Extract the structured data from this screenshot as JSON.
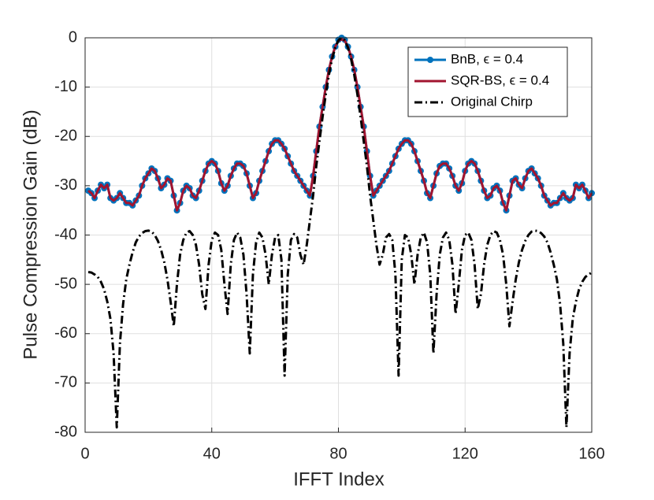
{
  "chart_data": {
    "type": "line",
    "xlabel": "IFFT Index",
    "ylabel": "Pulse Compression Gain (dB)",
    "xlim": [
      0,
      160
    ],
    "xticks": [
      0,
      40,
      80,
      120,
      160
    ],
    "ylim": [
      -80,
      0
    ],
    "yticks": [
      0,
      -10,
      -20,
      -30,
      -40,
      -50,
      -60,
      -70,
      -80
    ],
    "grid": true,
    "legend": "northeast",
    "x": [
      1,
      2,
      3,
      4,
      5,
      6,
      7,
      8,
      9,
      10,
      11,
      12,
      13,
      14,
      15,
      16,
      17,
      18,
      19,
      20,
      21,
      22,
      23,
      24,
      25,
      26,
      27,
      28,
      29,
      30,
      31,
      32,
      33,
      34,
      35,
      36,
      37,
      38,
      39,
      40,
      41,
      42,
      43,
      44,
      45,
      46,
      47,
      48,
      49,
      50,
      51,
      52,
      53,
      54,
      55,
      56,
      57,
      58,
      59,
      60,
      61,
      62,
      63,
      64,
      65,
      66,
      67,
      68,
      69,
      70,
      71,
      72,
      73,
      74,
      75,
      76,
      77,
      78,
      79,
      80,
      81,
      82,
      83,
      84,
      85,
      86,
      87,
      88,
      89,
      90,
      91,
      92,
      93,
      94,
      95,
      96,
      97,
      98,
      99,
      100,
      101,
      102,
      103,
      104,
      105,
      106,
      107,
      108,
      109,
      110,
      111,
      112,
      113,
      114,
      115,
      116,
      117,
      118,
      119,
      120,
      121,
      122,
      123,
      124,
      125,
      126,
      127,
      128,
      129,
      130,
      131,
      132,
      133,
      134,
      135,
      136,
      137,
      138,
      139,
      140,
      141,
      142,
      143,
      144,
      145,
      146,
      147,
      148,
      149,
      150,
      151,
      152,
      153,
      154,
      155,
      156,
      157,
      158,
      159,
      160
    ],
    "series": [
      {
        "name": "BnB, ϵ = 0.4",
        "color": "#0072bd",
        "marker": "o",
        "dash": "solid",
        "values": [
          -31,
          -31.5,
          -32.5,
          -31,
          -29.8,
          -30.5,
          -29.8,
          -32.5,
          -33,
          -32.5,
          -31.5,
          -32.5,
          -33.5,
          -33.5,
          -34,
          -33,
          -32,
          -30,
          -28.5,
          -27.5,
          -26.5,
          -27,
          -28.5,
          -30.5,
          -29.8,
          -28.5,
          -29,
          -32,
          -35,
          -33.5,
          -31,
          -30,
          -30.5,
          -32,
          -32.5,
          -31,
          -29,
          -27,
          -25.5,
          -25,
          -25.5,
          -27,
          -29.5,
          -31,
          -30,
          -28,
          -26.5,
          -25.5,
          -25.5,
          -26,
          -27.5,
          -30,
          -32.5,
          -31.5,
          -29,
          -27,
          -25,
          -23,
          -21.5,
          -20.8,
          -20.8,
          -21.5,
          -22.5,
          -24,
          -25.5,
          -27,
          -28,
          -29,
          -30,
          -31,
          -32,
          -28,
          -23,
          -18,
          -14,
          -10,
          -6.5,
          -3.8,
          -1.8,
          -0.4,
          0,
          -0.4,
          -1.8,
          -3.8,
          -6.5,
          -10,
          -14,
          -18,
          -23,
          -28,
          -32,
          -31,
          -30,
          -29,
          -28,
          -27,
          -25.5,
          -24,
          -22.5,
          -21.5,
          -20.8,
          -20.8,
          -21.5,
          -23,
          -25,
          -27,
          -29,
          -31.5,
          -32.5,
          -30,
          -27.5,
          -26,
          -25.5,
          -25.5,
          -26.5,
          -28,
          -30,
          -31,
          -29.5,
          -27,
          -25.5,
          -25,
          -25.5,
          -27,
          -29,
          -31,
          -32.5,
          -32,
          -30.5,
          -30,
          -31,
          -33.5,
          -35,
          -32,
          -29,
          -28.5,
          -29.8,
          -30.5,
          -28.5,
          -27,
          -26.5,
          -27.5,
          -28.5,
          -30,
          -32,
          -33,
          -34,
          -33.5,
          -33.5,
          -32.5,
          -31.5,
          -32.5,
          -33,
          -32.5,
          -29.8,
          -30.5,
          -29.8,
          -31,
          -32.5,
          -31.5
        ]
      },
      {
        "name": "SQR-BS, ϵ = 0.4",
        "color": "#a2142f",
        "marker": "none",
        "dash": "solid",
        "values": [
          -31,
          -31.5,
          -32.5,
          -31,
          -29.8,
          -30.5,
          -29.8,
          -32.5,
          -33,
          -32.5,
          -31.5,
          -32.5,
          -33.5,
          -33.5,
          -34,
          -33,
          -32,
          -30,
          -28.5,
          -27.5,
          -26.5,
          -27,
          -28.5,
          -30.5,
          -29.8,
          -28.5,
          -29,
          -32,
          -35,
          -33.5,
          -31,
          -30,
          -30.5,
          -32,
          -32.5,
          -31,
          -29,
          -27,
          -25.5,
          -25,
          -25.5,
          -27,
          -29.5,
          -31,
          -30,
          -28,
          -26.5,
          -25.5,
          -25.5,
          -26,
          -27.5,
          -30,
          -32.5,
          -31.5,
          -29,
          -27,
          -25,
          -23,
          -21.5,
          -20.8,
          -20.8,
          -21.5,
          -22.5,
          -24,
          -25.5,
          -27,
          -28,
          -29,
          -30,
          -31,
          -32,
          -28,
          -23,
          -18,
          -14,
          -10,
          -6.5,
          -3.8,
          -1.8,
          -0.6,
          -0.3,
          -0.6,
          -1.8,
          -3.8,
          -6.5,
          -10,
          -14,
          -18,
          -23,
          -28,
          -32,
          -31,
          -30,
          -29,
          -28,
          -27,
          -25.5,
          -24,
          -22.5,
          -21.5,
          -20.8,
          -20.8,
          -21.5,
          -23,
          -25,
          -27,
          -29,
          -31.5,
          -32.5,
          -30,
          -27.5,
          -26,
          -25.5,
          -25.5,
          -26.5,
          -28,
          -30,
          -31,
          -29.5,
          -27,
          -25.5,
          -25,
          -25.5,
          -27,
          -29,
          -31,
          -32.5,
          -32,
          -30.5,
          -30,
          -31,
          -33.5,
          -35,
          -32,
          -29,
          -28.5,
          -29.8,
          -30.5,
          -28.5,
          -27,
          -26.5,
          -27.5,
          -28.5,
          -30,
          -32,
          -33,
          -34,
          -33.5,
          -33.5,
          -32.5,
          -31.5,
          -32.5,
          -33,
          -32.5,
          -29.8,
          -30.5,
          -29.8,
          -31,
          -32.5,
          -31.5
        ]
      },
      {
        "name": "Original Chirp",
        "color": "#000000",
        "marker": "none",
        "dash": "dashdot",
        "values": [
          -47.5,
          -47.6,
          -48,
          -48.5,
          -49.5,
          -51,
          -53.5,
          -57,
          -64,
          -79,
          -62,
          -54,
          -49,
          -46,
          -43.5,
          -41.5,
          -40.3,
          -39.6,
          -39.2,
          -39.1,
          -39.3,
          -40,
          -41.2,
          -43,
          -45.5,
          -49,
          -53.5,
          -58.5,
          -50,
          -44,
          -41,
          -39.5,
          -39.2,
          -40,
          -42,
          -46,
          -52,
          -55,
          -46,
          -41,
          -39.5,
          -40,
          -43,
          -50,
          -56,
          -46,
          -41,
          -39.5,
          -40.5,
          -44,
          -52,
          -64,
          -48,
          -41.5,
          -39.5,
          -40.5,
          -44,
          -50,
          -44,
          -40.5,
          -40,
          -45,
          -68.5,
          -48,
          -41,
          -39.8,
          -40.5,
          -44,
          -46,
          -42,
          -37,
          -32,
          -26,
          -21,
          -16,
          -11.5,
          -7.5,
          -4.3,
          -2,
          -0.5,
          0,
          -0.5,
          -2,
          -4.3,
          -7.5,
          -11.5,
          -16,
          -21,
          -26,
          -32,
          -37,
          -42,
          -46,
          -44,
          -40.5,
          -39.8,
          -41,
          -48,
          -68.5,
          -45,
          -40,
          -40.5,
          -44,
          -50,
          -44,
          -40.5,
          -39.5,
          -41.5,
          -48,
          -64,
          -52,
          -44,
          -40.5,
          -39.5,
          -41,
          -46,
          -56,
          -50,
          -43,
          -40,
          -39.5,
          -41,
          -46,
          -55,
          -52,
          -46,
          -42,
          -40,
          -39.2,
          -39.5,
          -41,
          -44,
          -50,
          -58.5,
          -53.5,
          -49,
          -45.5,
          -43,
          -41.2,
          -40,
          -39.3,
          -39.1,
          -39.2,
          -39.6,
          -40.3,
          -41.5,
          -43.5,
          -46,
          -49,
          -54,
          -62,
          -79,
          -64,
          -57,
          -53.5,
          -51,
          -49.5,
          -48.5,
          -48,
          -47.6
        ]
      }
    ]
  }
}
